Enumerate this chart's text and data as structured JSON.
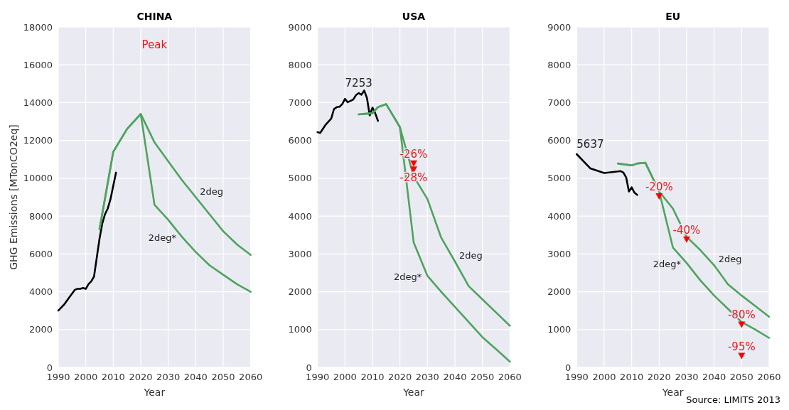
{
  "chart_data": [
    {
      "type": "line",
      "title": "CHINA",
      "xlabel": "Year",
      "ylabel": "GHG Emissions [MTonCO2eq]",
      "xlim": [
        1990,
        2060
      ],
      "xticks": [
        1990,
        2000,
        2010,
        2020,
        2030,
        2040,
        2050,
        2060
      ],
      "ylim": [
        0,
        18000
      ],
      "yticks": [
        0,
        2000,
        4000,
        6000,
        8000,
        10000,
        12000,
        14000,
        16000,
        18000
      ],
      "grid": true,
      "legend": false,
      "marker": "none",
      "line_style": "solid",
      "series": [
        {
          "color": "#000000",
          "x": [
            1990,
            1992,
            1994,
            1995,
            1996,
            1997,
            1998,
            1999,
            2000,
            2001,
            2002,
            2003,
            2004,
            2005,
            2006,
            2007,
            2008,
            2009,
            2010,
            2011
          ],
          "values": [
            3000,
            3300,
            3700,
            3900,
            4100,
            4150,
            4150,
            4200,
            4150,
            4400,
            4550,
            4800,
            5800,
            6800,
            7600,
            8100,
            8400,
            8900,
            9600,
            10300
          ]
        },
        {
          "name": "2deg",
          "color": "#4ea35e",
          "x": [
            2005,
            2010,
            2015,
            2020,
            2025,
            2030,
            2035,
            2040,
            2045,
            2050,
            2055,
            2060
          ],
          "values": [
            7300,
            11400,
            12600,
            13400,
            11900,
            10900,
            9900,
            9000,
            8100,
            7200,
            6500,
            5950
          ]
        },
        {
          "name": "2deg*",
          "color": "#4ea35e",
          "x": [
            2005,
            2010,
            2015,
            2020,
            2025,
            2030,
            2035,
            2040,
            2045,
            2050,
            2055,
            2060
          ],
          "values": [
            7300,
            11400,
            12600,
            13400,
            8600,
            7800,
            6900,
            6100,
            5400,
            4900,
            4400,
            4000
          ]
        }
      ],
      "annotations": [
        "Peak"
      ]
    },
    {
      "type": "line",
      "title": "USA",
      "xlabel": "Year",
      "xlim": [
        1990,
        2060
      ],
      "xticks": [
        1990,
        2000,
        2010,
        2020,
        2030,
        2040,
        2050,
        2060
      ],
      "ylim": [
        0,
        9000
      ],
      "yticks": [
        0,
        1000,
        2000,
        3000,
        4000,
        5000,
        6000,
        7000,
        8000,
        9000
      ],
      "grid": true,
      "legend": false,
      "marker": "none",
      "line_style": "solid",
      "series": [
        {
          "color": "#000000",
          "x": [
            1990,
            1991,
            1993,
            1995,
            1996,
            1997,
            1998,
            1999,
            2000,
            2001,
            2003,
            2004,
            2005,
            2006,
            2007,
            2008,
            2009,
            2010,
            2011,
            2012
          ],
          "values": [
            6220,
            6200,
            6420,
            6580,
            6830,
            6880,
            6890,
            6960,
            7100,
            7010,
            7080,
            7200,
            7253,
            7210,
            7320,
            7120,
            6660,
            6870,
            6720,
            6520
          ]
        },
        {
          "name": "2deg",
          "color": "#4ea35e",
          "x": [
            2005,
            2010,
            2012,
            2015,
            2020,
            2025,
            2030,
            2035,
            2040,
            2045,
            2050,
            2055,
            2060
          ],
          "values": [
            6690,
            6720,
            6880,
            6960,
            6350,
            5050,
            4450,
            3430,
            2800,
            2150,
            1800,
            1450,
            1100
          ]
        },
        {
          "name": "2deg*",
          "color": "#4ea35e",
          "x": [
            2005,
            2010,
            2012,
            2015,
            2020,
            2025,
            2030,
            2035,
            2040,
            2045,
            2050,
            2055,
            2060
          ],
          "values": [
            6690,
            6720,
            6880,
            6960,
            6350,
            3300,
            2420,
            2000,
            1600,
            1200,
            800,
            480,
            150
          ]
        },
        {
          "type": "scatter",
          "marker": "triangle",
          "color": "#ff0000",
          "x": [
            2025,
            2025
          ],
          "values": [
            5380,
            5220
          ]
        }
      ],
      "annotations": [
        {
          "text": "7253",
          "x": 2005,
          "y": 7253
        },
        {
          "text": "-26%",
          "x": 2025,
          "y": 5380
        },
        {
          "text": "-28%",
          "x": 2025,
          "y": 5220
        }
      ]
    },
    {
      "type": "line",
      "title": "EU",
      "xlabel": "Year",
      "xlim": [
        1990,
        2060
      ],
      "xticks": [
        1990,
        2000,
        2010,
        2020,
        2030,
        2040,
        2050,
        2060
      ],
      "ylim": [
        0,
        9000
      ],
      "yticks": [
        0,
        1000,
        2000,
        3000,
        4000,
        5000,
        6000,
        7000,
        8000,
        9000
      ],
      "grid": true,
      "legend": false,
      "marker": "none",
      "line_style": "solid",
      "series": [
        {
          "color": "#000000",
          "x": [
            1990,
            1995,
            2000,
            2005,
            2006,
            2007,
            2008,
            2009,
            2010,
            2011,
            2012
          ],
          "values": [
            5637,
            5260,
            5140,
            5180,
            5190,
            5150,
            5020,
            4650,
            4760,
            4620,
            4560
          ]
        },
        {
          "name": "2deg",
          "color": "#4ea35e",
          "x": [
            2005,
            2010,
            2012,
            2015,
            2020,
            2025,
            2030,
            2035,
            2040,
            2045,
            2050,
            2055,
            2060
          ],
          "values": [
            5390,
            5340,
            5390,
            5410,
            4650,
            4200,
            3450,
            3100,
            2700,
            2200,
            1900,
            1620,
            1340
          ]
        },
        {
          "name": "2deg*",
          "color": "#4ea35e",
          "x": [
            2005,
            2010,
            2012,
            2015,
            2020,
            2025,
            2030,
            2035,
            2040,
            2045,
            2050,
            2055,
            2060
          ],
          "values": [
            5390,
            5340,
            5390,
            5410,
            4650,
            3170,
            2760,
            2300,
            1900,
            1550,
            1200,
            1000,
            780
          ]
        },
        {
          "type": "scatter",
          "marker": "triangle",
          "color": "#ff0000",
          "x": [
            2020,
            2030,
            2050,
            2050
          ],
          "values": [
            4510,
            3370,
            1120,
            290
          ]
        }
      ],
      "annotations": [
        {
          "text": "5637",
          "x": 1990,
          "y": 5637
        },
        {
          "text": "-20%",
          "x": 2020,
          "y": 4510
        },
        {
          "text": "-40%",
          "x": 2030,
          "y": 3370
        },
        {
          "text": "-80%",
          "x": 2050,
          "y": 1120
        },
        {
          "text": "-95%",
          "x": 2050,
          "y": 290
        },
        "Source: LIMITS 2013"
      ]
    }
  ]
}
